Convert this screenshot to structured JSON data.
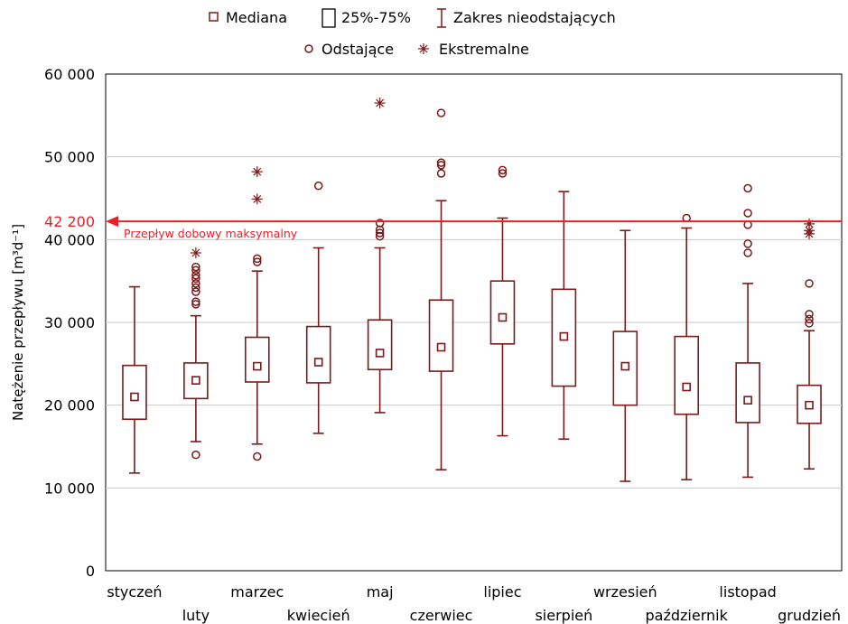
{
  "chart_data": {
    "type": "box",
    "ylabel": "Natężenie przepływu [m³d⁻¹]",
    "ylim": [
      0,
      60000
    ],
    "yticks": [
      "0",
      "10 000",
      "20 000",
      "30 000",
      "40 000",
      "50 000",
      "60 000"
    ],
    "grid": "horizontal",
    "legend": {
      "placement": "top",
      "row1": [
        "Mediana",
        "25%-75%",
        "Zakres nieodstających"
      ],
      "row2": [
        "Odstające",
        "Ekstremalne"
      ]
    },
    "reference_line": {
      "value": 42200,
      "value_label": "42 200",
      "text": "Przepływ dobowy maksymalny",
      "color": "#e8202a"
    },
    "series_color": "#7a1a1a",
    "categories": [
      "styczeń",
      "luty",
      "marzec",
      "kwiecień",
      "maj",
      "czerwiec",
      "lipiec",
      "sierpień",
      "wrzesień",
      "październik",
      "listopad",
      "grudzień"
    ],
    "boxes": [
      {
        "median": 21000,
        "q1": 18300,
        "q3": 24800,
        "whisker_low": 11800,
        "whisker_high": 34300,
        "outliers": [],
        "extremes": []
      },
      {
        "median": 23000,
        "q1": 20800,
        "q3": 25100,
        "whisker_low": 15600,
        "whisker_high": 30800,
        "outliers": [
          14000,
          32200,
          32500,
          33700,
          34200,
          34700,
          35300,
          35700,
          36300,
          36700
        ],
        "extremes": [
          38400
        ]
      },
      {
        "median": 24700,
        "q1": 22800,
        "q3": 28200,
        "whisker_low": 15300,
        "whisker_high": 36200,
        "outliers": [
          13800,
          37300,
          37700
        ],
        "extremes": [
          44900,
          48200
        ]
      },
      {
        "median": 25200,
        "q1": 22700,
        "q3": 29500,
        "whisker_low": 16600,
        "whisker_high": 39000,
        "outliers": [
          46500
        ],
        "extremes": []
      },
      {
        "median": 26300,
        "q1": 24300,
        "q3": 30300,
        "whisker_low": 19100,
        "whisker_high": 39000,
        "outliers": [
          40400,
          40800,
          41200,
          42000
        ],
        "extremes": [
          56500
        ]
      },
      {
        "median": 27000,
        "q1": 24100,
        "q3": 32700,
        "whisker_low": 12200,
        "whisker_high": 44700,
        "outliers": [
          48000,
          49000,
          49300,
          55300
        ],
        "extremes": []
      },
      {
        "median": 30600,
        "q1": 27400,
        "q3": 35000,
        "whisker_low": 16300,
        "whisker_high": 42600,
        "outliers": [
          48000,
          48400
        ],
        "extremes": []
      },
      {
        "median": 28300,
        "q1": 22300,
        "q3": 34000,
        "whisker_low": 15900,
        "whisker_high": 45800,
        "outliers": [],
        "extremes": []
      },
      {
        "median": 24700,
        "q1": 20000,
        "q3": 28900,
        "whisker_low": 10800,
        "whisker_high": 41100,
        "outliers": [],
        "extremes": []
      },
      {
        "median": 22200,
        "q1": 18900,
        "q3": 28300,
        "whisker_low": 11000,
        "whisker_high": 41400,
        "outliers": [
          42600
        ],
        "extremes": []
      },
      {
        "median": 20600,
        "q1": 17900,
        "q3": 25100,
        "whisker_low": 11300,
        "whisker_high": 34700,
        "outliers": [
          38400,
          39500,
          41800,
          43200,
          46200
        ],
        "extremes": []
      },
      {
        "median": 20000,
        "q1": 17800,
        "q3": 22400,
        "whisker_low": 12300,
        "whisker_high": 29000,
        "outliers": [
          29900,
          30400,
          31000,
          34700
        ],
        "extremes": [
          40700,
          41100,
          41900
        ]
      }
    ]
  }
}
